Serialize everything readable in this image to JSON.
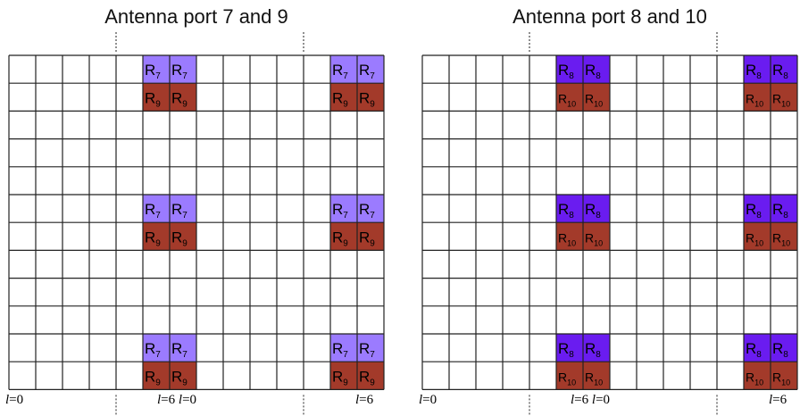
{
  "panels": [
    {
      "title": "Antenna port 7 and 9",
      "upper_sym": "R",
      "upper_sub": "7",
      "upper_color": "#9b7bff",
      "lower_sym": "R",
      "lower_sub": "9",
      "lower_color": "#a33a2a",
      "left_axis": {
        "var": "l",
        "eq": "=0"
      },
      "right_axis": {
        "var": "l",
        "eq": "=6"
      },
      "mid_axis": {
        "left_var": "l",
        "left_eq": "=6",
        "right_var": "l",
        "right_eq": "=0"
      }
    },
    {
      "title": "Antenna port 8 and 10",
      "upper_sym": "R",
      "upper_sub": "8",
      "upper_color": "#6a1cf0",
      "lower_sym": "R",
      "lower_sub": "10",
      "lower_color": "#a33a2a",
      "left_axis": {
        "var": "l",
        "eq": "=0"
      },
      "right_axis": {
        "var": "l",
        "eq": "=6"
      },
      "mid_axis": {
        "left_var": "l",
        "left_eq": "=6",
        "right_var": "l",
        "right_eq": "=0"
      }
    }
  ],
  "grid": {
    "columns": 14,
    "rows": 12,
    "rs_columns": [
      5,
      6,
      12,
      13
    ],
    "rs_row_pairs": [
      [
        0,
        1
      ],
      [
        5,
        6
      ],
      [
        10,
        11
      ]
    ]
  }
}
